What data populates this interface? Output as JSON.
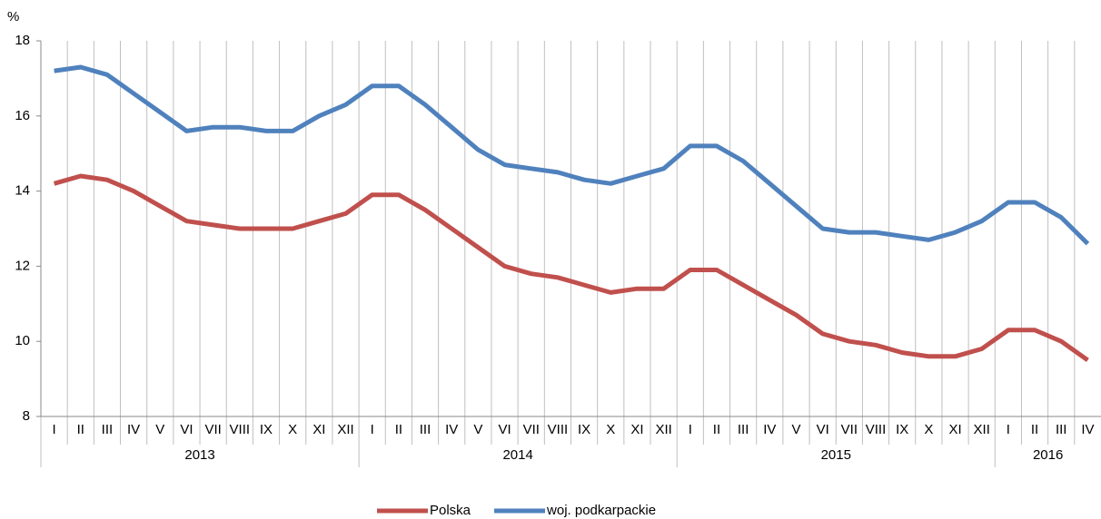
{
  "chart_data": {
    "type": "line",
    "y_unit": "%",
    "groups": [
      {
        "label": "2013",
        "categories": [
          "I",
          "II",
          "III",
          "IV",
          "V",
          "VI",
          "VII",
          "VIII",
          "IX",
          "X",
          "XI",
          "XII"
        ]
      },
      {
        "label": "2014",
        "categories": [
          "I",
          "II",
          "III",
          "IV",
          "V",
          "VI",
          "VII",
          "VIII",
          "IX",
          "X",
          "XI",
          "XII"
        ]
      },
      {
        "label": "2015",
        "categories": [
          "I",
          "II",
          "III",
          "IV",
          "V",
          "VI",
          "VII",
          "VIII",
          "IX",
          "X",
          "XI",
          "XII"
        ]
      },
      {
        "label": "2016",
        "categories": [
          "I",
          "II",
          "III",
          "IV"
        ]
      }
    ],
    "series": [
      {
        "name": "Polska",
        "color": "#c0504d",
        "values": [
          14.2,
          14.4,
          14.3,
          14.0,
          13.6,
          13.2,
          13.1,
          13.0,
          13.0,
          13.0,
          13.2,
          13.4,
          13.9,
          13.9,
          13.5,
          13.0,
          12.5,
          12.0,
          11.8,
          11.7,
          11.5,
          11.3,
          11.4,
          11.4,
          11.9,
          11.9,
          11.5,
          11.1,
          10.7,
          10.2,
          10.0,
          9.9,
          9.7,
          9.6,
          9.6,
          9.8,
          10.3,
          10.3,
          10.0,
          9.5
        ]
      },
      {
        "name": "woj. podkarpackie",
        "color": "#4f81bd",
        "values": [
          17.2,
          17.3,
          17.1,
          16.6,
          16.1,
          15.6,
          15.7,
          15.7,
          15.6,
          15.6,
          16.0,
          16.3,
          16.8,
          16.8,
          16.3,
          15.7,
          15.1,
          14.7,
          14.6,
          14.5,
          14.3,
          14.2,
          14.4,
          14.6,
          15.2,
          15.2,
          14.8,
          14.2,
          13.6,
          13.0,
          12.9,
          12.9,
          12.8,
          12.7,
          12.9,
          13.2,
          13.7,
          13.7,
          13.3,
          12.6
        ]
      }
    ],
    "ylim": [
      8,
      18
    ],
    "yticks": [
      8,
      10,
      12,
      14,
      16,
      18
    ],
    "grid": "vertical",
    "legend": "bottom"
  }
}
